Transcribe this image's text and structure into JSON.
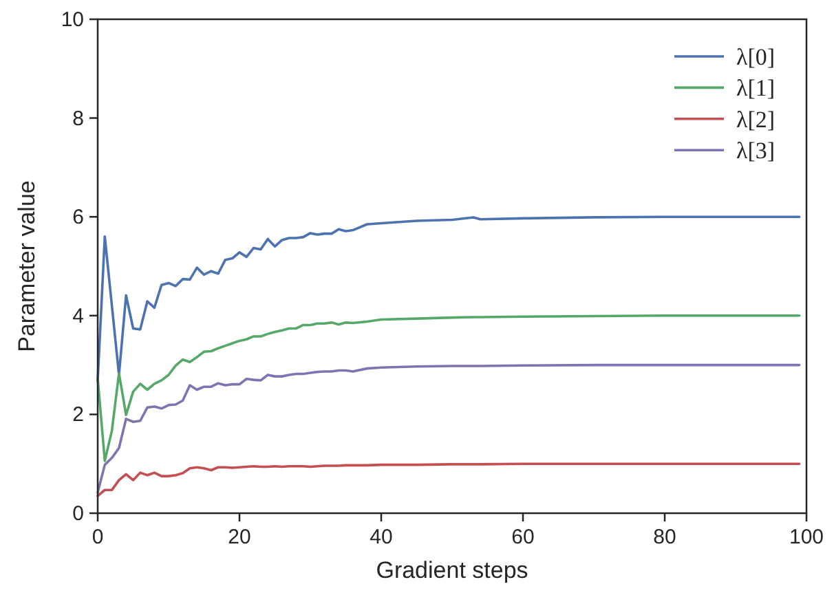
{
  "chart_data": {
    "type": "line",
    "xlabel": "Gradient steps",
    "ylabel": "Parameter value",
    "x": [
      0,
      1,
      2,
      3,
      4,
      5,
      6,
      7,
      8,
      9,
      10,
      11,
      12,
      13,
      14,
      15,
      16,
      17,
      18,
      19,
      20,
      21,
      22,
      23,
      24,
      25,
      26,
      27,
      28,
      29,
      30,
      31,
      32,
      33,
      34,
      35,
      36,
      38,
      40,
      45,
      50,
      53,
      54,
      60,
      70,
      80,
      90,
      99
    ],
    "series": [
      {
        "name": "λ[0]",
        "color": "#4c72b0",
        "values": [
          2.69,
          5.6,
          4.2,
          2.8,
          4.41,
          3.74,
          3.72,
          4.29,
          4.16,
          4.62,
          4.66,
          4.6,
          4.74,
          4.73,
          4.97,
          4.83,
          4.9,
          4.85,
          5.13,
          5.16,
          5.28,
          5.19,
          5.37,
          5.34,
          5.55,
          5.4,
          5.53,
          5.57,
          5.57,
          5.59,
          5.67,
          5.64,
          5.66,
          5.66,
          5.75,
          5.71,
          5.73,
          5.85,
          5.87,
          5.92,
          5.94,
          5.99,
          5.95,
          5.97,
          5.99,
          6.0,
          6.0,
          6.0
        ]
      },
      {
        "name": "λ[1]",
        "color": "#55a868",
        "values": [
          2.73,
          1.06,
          1.67,
          2.83,
          1.99,
          2.46,
          2.62,
          2.5,
          2.62,
          2.69,
          2.8,
          2.99,
          3.11,
          3.06,
          3.16,
          3.27,
          3.28,
          3.34,
          3.39,
          3.44,
          3.49,
          3.52,
          3.58,
          3.58,
          3.63,
          3.67,
          3.7,
          3.74,
          3.74,
          3.81,
          3.81,
          3.84,
          3.84,
          3.86,
          3.82,
          3.86,
          3.85,
          3.88,
          3.92,
          3.94,
          3.96,
          3.97,
          3.97,
          3.98,
          3.99,
          4.0,
          4.0,
          4.0
        ]
      },
      {
        "name": "λ[2]",
        "color": "#c44e52",
        "values": [
          0.35,
          0.47,
          0.47,
          0.67,
          0.79,
          0.67,
          0.82,
          0.77,
          0.82,
          0.75,
          0.75,
          0.77,
          0.81,
          0.91,
          0.93,
          0.91,
          0.87,
          0.93,
          0.93,
          0.92,
          0.93,
          0.94,
          0.95,
          0.94,
          0.94,
          0.95,
          0.94,
          0.95,
          0.95,
          0.95,
          0.94,
          0.95,
          0.96,
          0.96,
          0.96,
          0.97,
          0.97,
          0.97,
          0.98,
          0.98,
          0.99,
          0.99,
          0.99,
          1.0,
          1.0,
          1.0,
          1.0,
          1.0
        ]
      },
      {
        "name": "λ[3]",
        "color": "#8172b2",
        "values": [
          0.42,
          0.98,
          1.12,
          1.32,
          1.91,
          1.85,
          1.87,
          2.14,
          2.16,
          2.12,
          2.19,
          2.2,
          2.28,
          2.59,
          2.5,
          2.56,
          2.56,
          2.63,
          2.59,
          2.61,
          2.61,
          2.72,
          2.7,
          2.69,
          2.8,
          2.77,
          2.77,
          2.8,
          2.82,
          2.82,
          2.84,
          2.86,
          2.87,
          2.87,
          2.89,
          2.89,
          2.87,
          2.93,
          2.95,
          2.97,
          2.98,
          2.98,
          2.98,
          2.99,
          3.0,
          3.0,
          3.0,
          3.0
        ]
      }
    ],
    "xlim": [
      0,
      100
    ],
    "xticks": [
      0,
      20,
      40,
      60,
      80,
      100
    ],
    "ylim": [
      0,
      10
    ],
    "yticks": [
      0,
      2,
      4,
      6,
      8,
      10
    ],
    "grid": false,
    "legend": "top right",
    "marker": "none",
    "line_style": "solid"
  }
}
